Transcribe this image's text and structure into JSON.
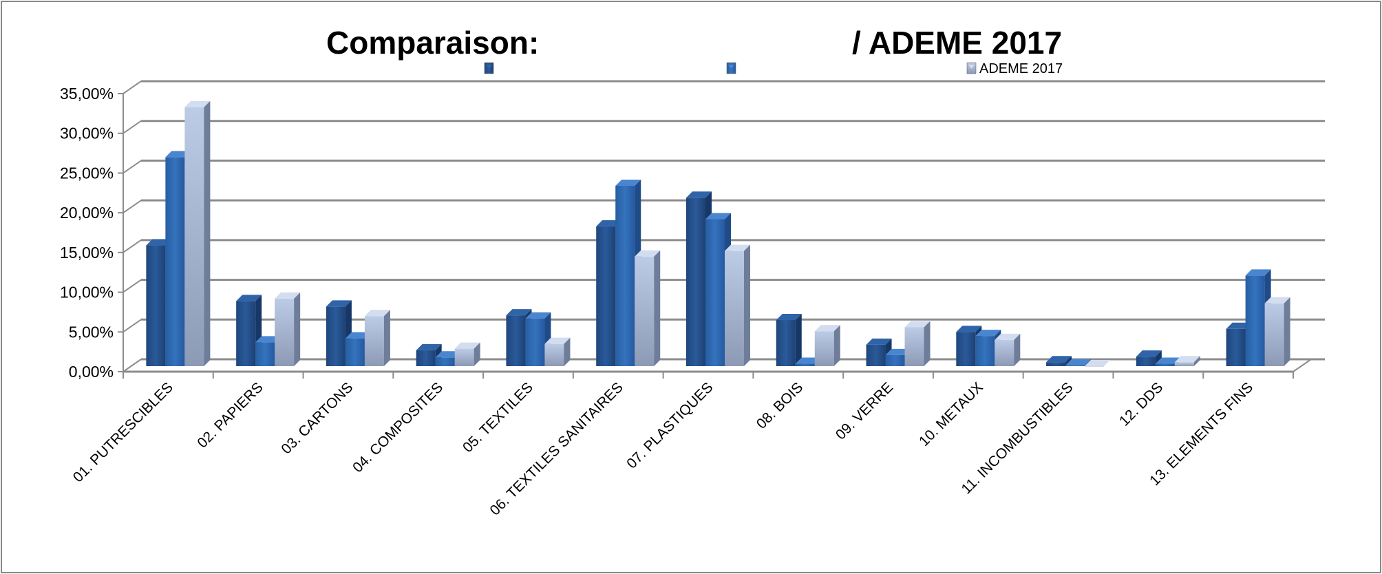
{
  "chart_data": {
    "type": "bar",
    "title_left": "Comparaison:",
    "title_right": "/ ADEME 2017",
    "xlabel": "",
    "ylabel": "",
    "ylim": [
      0,
      35
    ],
    "y_ticks": [
      "0,00%",
      "5,00%",
      "10,00%",
      "15,00%",
      "20,00%",
      "25,00%",
      "30,00%",
      "35,00%"
    ],
    "grid": true,
    "legend_position": "top",
    "style": "3d-clustered-column",
    "categories": [
      "01. PUTRESCIBLES",
      "02. PAPIERS",
      "03. CARTONS",
      "04. COMPOSITES",
      "05. TEXTILES",
      "06. TEXTILES SANITAIRES",
      "07. PLASTIQUES",
      "08. BOIS",
      "09. VERRE",
      "10. METAUX",
      "11. INCOMBUSTIBLES",
      "12. DDS",
      "13. ELEMENTS FINS"
    ],
    "series": [
      {
        "name": "",
        "color": "#24508c",
        "values": [
          15.2,
          8.2,
          7.5,
          2.0,
          6.4,
          17.6,
          21.2,
          5.8,
          2.7,
          4.3,
          0.5,
          1.2,
          4.7
        ]
      },
      {
        "name": "",
        "color": "#2e6ab4",
        "values": [
          26.3,
          3.0,
          3.5,
          1.1,
          6.0,
          22.7,
          18.5,
          0.3,
          1.4,
          3.8,
          0.1,
          0.3,
          11.4
        ]
      },
      {
        "name": "ADEME 2017",
        "color": "#a9b8d6",
        "values": [
          32.6,
          8.5,
          6.3,
          2.2,
          2.8,
          13.8,
          14.5,
          4.4,
          4.9,
          3.3,
          0.0,
          0.5,
          7.9
        ]
      }
    ]
  }
}
